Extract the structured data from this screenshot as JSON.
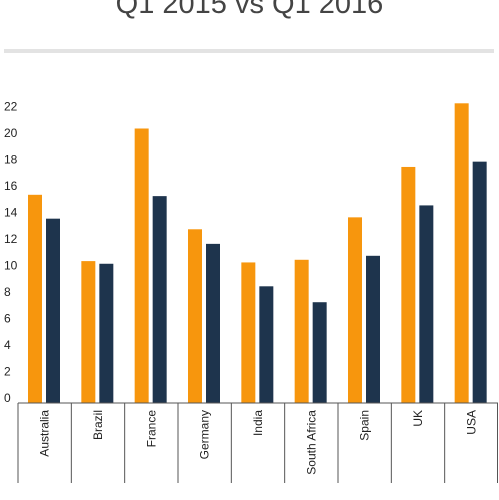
{
  "chart_data": {
    "type": "bar",
    "title_lines": [
      "Q1 2015 vs Q1 2016"
    ],
    "categories": [
      "Australia",
      "Brazil",
      "France",
      "Germany",
      "India",
      "South Africa",
      "Spain",
      "UK",
      "USA"
    ],
    "series": [
      {
        "values": [
          15.7,
          10.7,
          20.7,
          13.1,
          10.6,
          10.8,
          14.0,
          17.8,
          22.6
        ]
      },
      {
        "values": [
          13.9,
          10.5,
          15.6,
          12.0,
          8.8,
          7.6,
          11.1,
          14.9,
          18.2
        ]
      }
    ],
    "colors": [
      "#f7960d",
      "#1e344d"
    ],
    "yticks": [
      0,
      2,
      4,
      6,
      8,
      10,
      12,
      14,
      16,
      18,
      20,
      22
    ],
    "ylim": [
      0,
      23
    ],
    "grid": false,
    "legend": "none"
  }
}
